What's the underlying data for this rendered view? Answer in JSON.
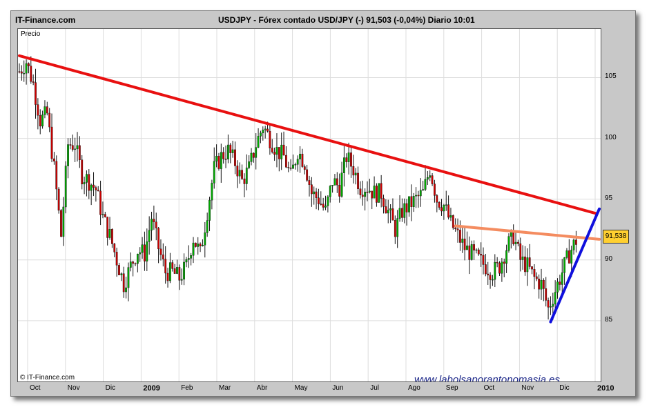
{
  "header": {
    "site": "IT-Finance.com",
    "title": "USDJPY - Fórex contado USD/JPY (-)    91,503 (-0,04%)   Diario  10:01"
  },
  "plot": {
    "ylabel": "Precio",
    "copyright": "© IT-Finance.com",
    "watermark": "www.labolsaporantonomasia.es",
    "price_label": "91,538",
    "price_label_color": "#ffd030"
  },
  "chart_data": {
    "type": "candlestick",
    "ylim": [
      80,
      109
    ],
    "yticks": [
      85,
      90,
      95,
      100,
      105
    ],
    "ytick_labels": [
      "85",
      "90",
      "95",
      "100",
      "105"
    ],
    "xtick_labels": [
      "Oct",
      "Nov",
      "Dic",
      "2009",
      "Feb",
      "Mar",
      "Abr",
      "May",
      "Jun",
      "Jul",
      "Ago",
      "Sep",
      "Oct",
      "Nov",
      "Dic",
      "2010"
    ],
    "xtick_bold": [
      false,
      false,
      false,
      true,
      false,
      false,
      false,
      false,
      false,
      false,
      false,
      false,
      false,
      false,
      false,
      true
    ],
    "grid": true,
    "candle_up_color": "#00aa00",
    "candle_down_color": "#cc0000",
    "price_path": [
      [
        0,
        105.5
      ],
      [
        3,
        106.3
      ],
      [
        6,
        104.5
      ],
      [
        9,
        101.5
      ],
      [
        12,
        102.0
      ],
      [
        15,
        97.5
      ],
      [
        18,
        92.0
      ],
      [
        21,
        99.5
      ],
      [
        24,
        99.5
      ],
      [
        27,
        97.0
      ],
      [
        30,
        96.5
      ],
      [
        33,
        95.8
      ],
      [
        36,
        93.5
      ],
      [
        39,
        92.0
      ],
      [
        42,
        90.0
      ],
      [
        45,
        88.0
      ],
      [
        48,
        89.5
      ],
      [
        51,
        90.8
      ],
      [
        54,
        90.5
      ],
      [
        57,
        93.5
      ],
      [
        60,
        91.0
      ],
      [
        63,
        89.0
      ],
      [
        66,
        89.0
      ],
      [
        69,
        88.5
      ],
      [
        72,
        89.5
      ],
      [
        75,
        91.8
      ],
      [
        78,
        90.5
      ],
      [
        81,
        94.0
      ],
      [
        84,
        97.5
      ],
      [
        87,
        98.5
      ],
      [
        90,
        99.0
      ],
      [
        93,
        98.0
      ],
      [
        96,
        96.5
      ],
      [
        99,
        97.5
      ],
      [
        102,
        99.5
      ],
      [
        105,
        101.0
      ],
      [
        108,
        100.0
      ],
      [
        111,
        99.0
      ],
      [
        114,
        98.5
      ],
      [
        117,
        96.8
      ],
      [
        120,
        99.0
      ],
      [
        123,
        98.0
      ],
      [
        126,
        95.5
      ],
      [
        129,
        95.0
      ],
      [
        132,
        94.0
      ],
      [
        135,
        96.5
      ],
      [
        138,
        96.0
      ],
      [
        141,
        98.5
      ],
      [
        144,
        97.5
      ],
      [
        147,
        96.0
      ],
      [
        150,
        96.0
      ],
      [
        153,
        95.5
      ],
      [
        156,
        95.5
      ],
      [
        159,
        94.0
      ],
      [
        162,
        92.5
      ],
      [
        165,
        94.0
      ],
      [
        168,
        94.5
      ],
      [
        171,
        95.0
      ],
      [
        174,
        95.5
      ],
      [
        177,
        97.5
      ],
      [
        180,
        95.0
      ],
      [
        183,
        94.5
      ],
      [
        186,
        93.0
      ],
      [
        189,
        92.0
      ],
      [
        192,
        91.0
      ],
      [
        195,
        90.5
      ],
      [
        198,
        90.0
      ],
      [
        201,
        89.5
      ],
      [
        204,
        89.0
      ],
      [
        207,
        89.5
      ],
      [
        210,
        91.0
      ],
      [
        213,
        92.0
      ],
      [
        216,
        90.0
      ],
      [
        219,
        89.5
      ],
      [
        222,
        88.5
      ],
      [
        225,
        88.0
      ],
      [
        228,
        86.0
      ],
      [
        231,
        87.5
      ],
      [
        234,
        89.0
      ],
      [
        237,
        90.5
      ],
      [
        240,
        91.6
      ]
    ],
    "lines": [
      {
        "color": "#e81010",
        "points": [
          [
            0,
            106.8
          ],
          [
            249,
            93.8
          ]
        ]
      },
      {
        "color": "#f48c60",
        "points": [
          [
            188,
            92.8
          ],
          [
            250,
            91.7
          ]
        ]
      },
      {
        "color": "#1010dd",
        "points": [
          [
            229,
            84.9
          ],
          [
            250,
            94.2
          ]
        ]
      }
    ],
    "xmax": 250
  }
}
